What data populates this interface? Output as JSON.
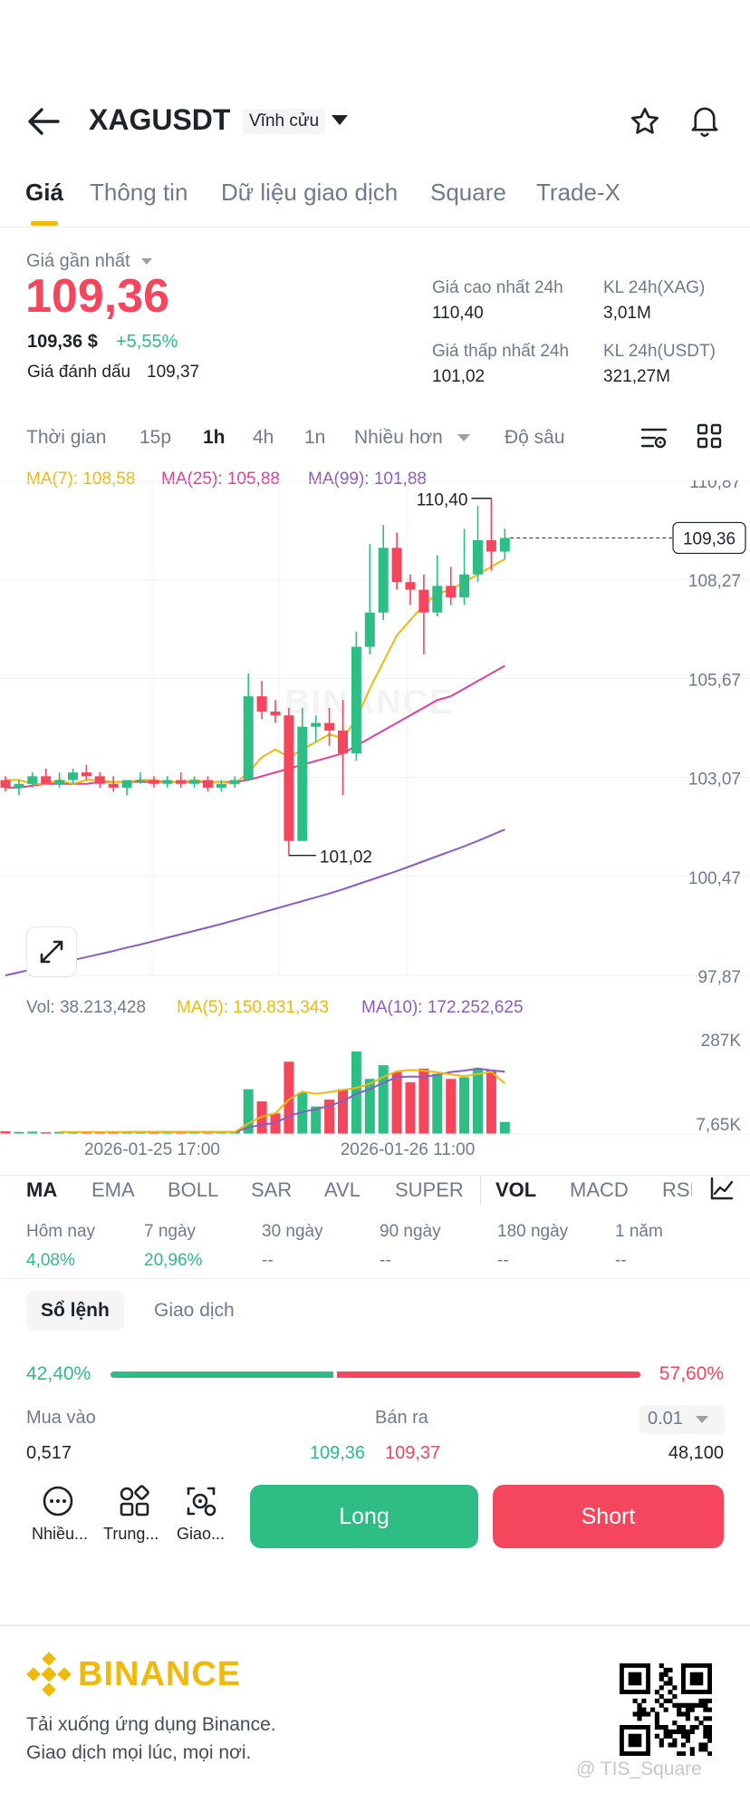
{
  "header": {
    "symbol": "XAGUSDT",
    "contract_type": "Vĩnh cửu"
  },
  "tabs": [
    {
      "label": "Giá"
    },
    {
      "label": "Thông tin"
    },
    {
      "label": "Dữ liệu giao dịch"
    },
    {
      "label": "Square"
    },
    {
      "label": "Trade-X"
    }
  ],
  "price": {
    "label": "Giá gần nhất",
    "last": "109,36",
    "usd": "109,36 $",
    "change": "+5,55%",
    "mark_label": "Giá đánh dấu",
    "mark": "109,37"
  },
  "stats": {
    "high_label": "Giá cao nhất 24h",
    "high": "110,40",
    "low_label": "Giá thấp nhất 24h",
    "low": "101,02",
    "vol_xag_label": "KL 24h(XAG)",
    "vol_xag": "3,01M",
    "vol_usdt_label": "KL 24h(USDT)",
    "vol_usdt": "321,27M"
  },
  "timebar": {
    "time": "Thời gian",
    "i15": "15p",
    "i1h": "1h",
    "i4h": "4h",
    "i1d": "1n",
    "more": "Nhiều hơn",
    "depth": "Độ sâu"
  },
  "ma_legend": {
    "ma7": "MA(7): 108,58",
    "ma25": "MA(25): 105,88",
    "ma99": "MA(99): 101,88"
  },
  "vol_legend": {
    "vol": "Vol: 38.213,428",
    "ma5": "MA(5): 150.831,343",
    "ma10": "MA(10): 172.252,625"
  },
  "colors": {
    "up": "#2ebd85",
    "down": "#f6465d",
    "ma7": "#f0b90b",
    "ma25": "#e0409c",
    "ma99": "#8a5cc8",
    "brand": "#f0b90b"
  },
  "chart_data": {
    "type": "candlestick",
    "price_ticks": [
      "110,87",
      "108,27",
      "105,67",
      "103,07",
      "100,47",
      "97,87"
    ],
    "vol_ticks": [
      "287K",
      "7,65K"
    ],
    "x_ticks": [
      "2026-01-25 17:00",
      "2026-01-26 11:00"
    ],
    "current_price": "109,36",
    "high_label": "110,40",
    "low_label": "101,02",
    "watermark": "BINANCE",
    "candles": [
      [
        103.0,
        103.1,
        102.7,
        102.8
      ],
      [
        102.8,
        103.0,
        102.6,
        102.9
      ],
      [
        102.9,
        103.2,
        102.8,
        103.1
      ],
      [
        103.1,
        103.3,
        102.9,
        102.9
      ],
      [
        102.9,
        103.2,
        102.8,
        103.0
      ],
      [
        103.0,
        103.3,
        102.9,
        103.2
      ],
      [
        103.2,
        103.4,
        103.0,
        103.1
      ],
      [
        103.1,
        103.2,
        102.8,
        102.9
      ],
      [
        102.9,
        103.1,
        102.7,
        102.8
      ],
      [
        102.8,
        103.0,
        102.6,
        103.0
      ],
      [
        103.0,
        103.2,
        102.9,
        103.0
      ],
      [
        103.0,
        103.1,
        102.8,
        102.9
      ],
      [
        102.9,
        103.1,
        102.8,
        103.0
      ],
      [
        103.0,
        103.2,
        102.8,
        102.9
      ],
      [
        102.9,
        103.1,
        102.8,
        103.0
      ],
      [
        103.0,
        103.1,
        102.7,
        102.8
      ],
      [
        102.8,
        103.0,
        102.7,
        102.9
      ],
      [
        102.9,
        103.1,
        102.8,
        103.0
      ],
      [
        103.0,
        105.8,
        103.0,
        105.2
      ],
      [
        105.2,
        105.6,
        104.6,
        104.8
      ],
      [
        104.8,
        105.1,
        104.5,
        104.7
      ],
      [
        104.7,
        104.9,
        101.02,
        101.4
      ],
      [
        101.4,
        104.9,
        101.4,
        104.4
      ],
      [
        104.4,
        104.7,
        104.0,
        104.5
      ],
      [
        104.5,
        104.9,
        103.9,
        104.3
      ],
      [
        104.3,
        105.1,
        102.6,
        103.7
      ],
      [
        103.7,
        106.9,
        103.5,
        106.5
      ],
      [
        106.5,
        109.2,
        106.3,
        107.4
      ],
      [
        107.4,
        109.7,
        107.2,
        109.1
      ],
      [
        109.1,
        109.5,
        108.0,
        108.2
      ],
      [
        108.2,
        108.4,
        107.6,
        108.0
      ],
      [
        108.0,
        108.4,
        106.3,
        107.4
      ],
      [
        107.4,
        108.9,
        107.3,
        108.1
      ],
      [
        108.1,
        108.6,
        107.6,
        107.8
      ],
      [
        107.8,
        109.6,
        107.6,
        108.4
      ],
      [
        108.4,
        110.2,
        108.2,
        109.3
      ],
      [
        109.3,
        110.4,
        108.5,
        109.0
      ],
      [
        109.0,
        109.6,
        108.8,
        109.36
      ]
    ],
    "volumes": [
      8,
      6,
      7,
      5,
      6,
      7,
      5,
      6,
      5,
      7,
      6,
      5,
      6,
      5,
      7,
      6,
      5,
      8,
      130,
      95,
      60,
      210,
      120,
      80,
      100,
      130,
      240,
      160,
      200,
      180,
      150,
      190,
      175,
      160,
      165,
      190,
      185,
      35
    ],
    "vol_max": 287,
    "ma7": [
      103.0,
      103.0,
      102.9,
      102.9,
      103.0,
      102.9,
      103.0,
      103.0,
      102.95,
      102.95,
      103.0,
      103.0,
      102.95,
      102.95,
      103.0,
      102.95,
      102.95,
      102.9,
      103.2,
      103.6,
      103.8,
      103.6,
      103.8,
      104.0,
      104.2,
      104.1,
      104.6,
      105.4,
      106.1,
      106.8,
      107.2,
      107.6,
      107.9,
      108.0,
      108.2,
      108.4,
      108.6,
      108.8
    ],
    "ma25": [
      102.8,
      102.8,
      102.85,
      102.9,
      102.9,
      102.9,
      102.9,
      102.95,
      102.95,
      102.95,
      102.95,
      102.95,
      102.95,
      102.95,
      102.95,
      102.95,
      102.95,
      102.95,
      103.0,
      103.1,
      103.2,
      103.3,
      103.4,
      103.5,
      103.6,
      103.7,
      103.9,
      104.1,
      104.3,
      104.5,
      104.7,
      104.9,
      105.1,
      105.2,
      105.4,
      105.6,
      105.8,
      106.0
    ],
    "ma99": [
      97.87,
      97.95,
      98.03,
      98.11,
      98.19,
      98.27,
      98.35,
      98.43,
      98.51,
      98.6,
      98.68,
      98.77,
      98.86,
      98.95,
      99.04,
      99.13,
      99.22,
      99.32,
      99.42,
      99.52,
      99.62,
      99.72,
      99.82,
      99.92,
      100.02,
      100.13,
      100.25,
      100.37,
      100.49,
      100.61,
      100.74,
      100.87,
      101.0,
      101.13,
      101.26,
      101.4,
      101.55,
      101.7
    ],
    "vol_ma5": [
      null,
      null,
      null,
      null,
      6,
      6,
      6,
      6,
      6,
      6,
      6,
      6,
      6,
      6,
      6,
      6,
      6,
      6,
      31,
      50,
      60,
      100,
      123,
      117,
      122,
      128,
      134,
      146,
      166,
      182,
      186,
      184,
      179,
      173,
      168,
      174,
      181,
      147
    ],
    "vol_ma10": [
      null,
      null,
      null,
      null,
      null,
      null,
      null,
      null,
      null,
      6,
      6,
      6,
      6,
      6,
      6,
      6,
      6,
      6,
      19,
      27,
      32,
      52,
      64,
      72,
      82,
      95,
      117,
      130,
      149,
      165,
      167,
      166,
      172,
      180,
      184,
      190,
      185,
      181
    ]
  },
  "indicators": {
    "ma": "MA",
    "ema": "EMA",
    "boll": "BOLL",
    "sar": "SAR",
    "avl": "AVL",
    "super": "SUPER",
    "vol": "VOL",
    "macd": "MACD",
    "rsi": "RSI"
  },
  "performance": [
    {
      "label": "Hôm nay",
      "value": "4,08%"
    },
    {
      "label": "7 ngày",
      "value": "20,96%"
    },
    {
      "label": "30 ngày",
      "value": "--"
    },
    {
      "label": "90 ngày",
      "value": "--"
    },
    {
      "label": "180 ngày",
      "value": "--"
    },
    {
      "label": "1 năm",
      "value": "--"
    }
  ],
  "orderbook": {
    "tab_book": "Sổ lệnh",
    "tab_trades": "Giao dịch",
    "buy_pct": "42,40%",
    "sell_pct": "57,60%",
    "buy_ratio": 0.424,
    "buy_label": "Mua vào",
    "sell_label": "Bán ra",
    "step": "0.01",
    "bid_qty": "0,517",
    "bid_price": "109,36",
    "ask_price": "109,37",
    "ask_qty": "48,100"
  },
  "actions": {
    "more": "Nhiều...",
    "center": "Trung...",
    "trade": "Giao...",
    "long": "Long",
    "short": "Short"
  },
  "footer": {
    "brand": "BINANCE",
    "line1": "Tải xuống ứng dụng Binance.",
    "line2": "Giao dịch mọi lúc, mọi nơi.",
    "watermark": "@ TIS_Square"
  }
}
